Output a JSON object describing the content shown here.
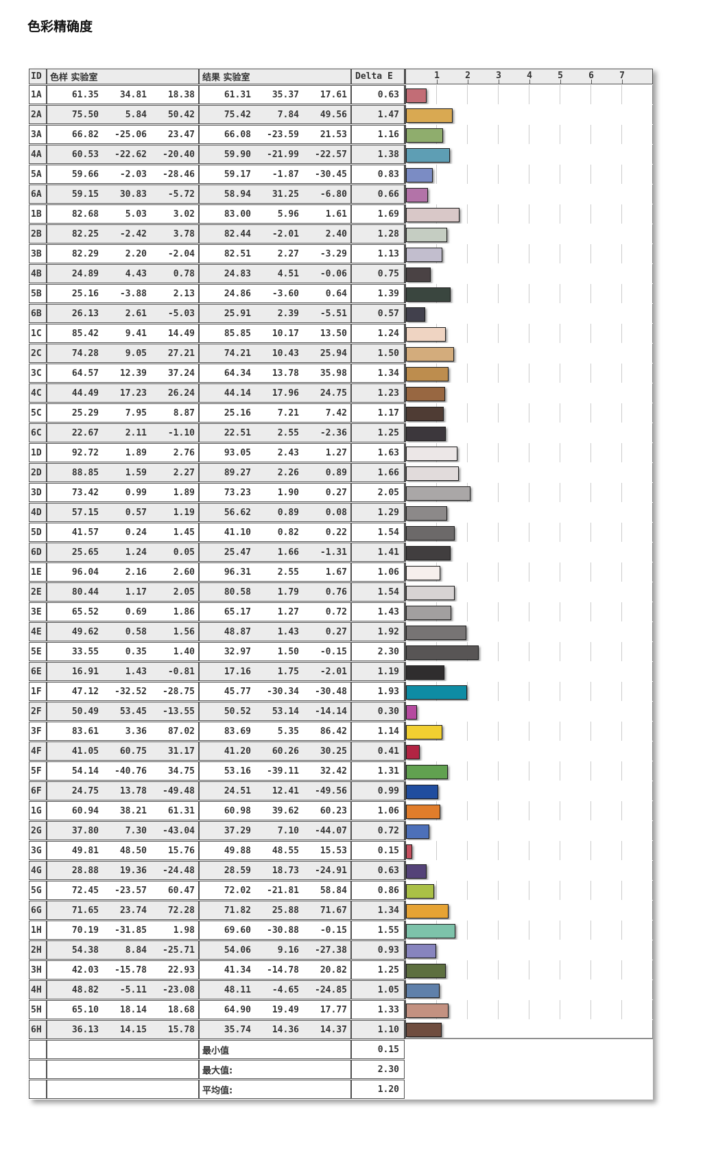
{
  "title": "色彩精确度",
  "table": {
    "headers": {
      "id": "ID",
      "sample": "色样 实验室",
      "result": "结果 实验室",
      "delta": "Delta E"
    },
    "scale_ticks": [
      "1",
      "2",
      "3",
      "4",
      "5",
      "6",
      "7"
    ],
    "rows": [
      {
        "id": "1A",
        "sample": [
          "61.35",
          "34.81",
          "18.38"
        ],
        "result": [
          "61.31",
          "35.37",
          "17.61"
        ],
        "delta": "0.63",
        "color": "#c26d76"
      },
      {
        "id": "2A",
        "sample": [
          "75.50",
          "5.84",
          "50.42"
        ],
        "result": [
          "75.42",
          "7.84",
          "49.56"
        ],
        "delta": "1.47",
        "color": "#d9a952"
      },
      {
        "id": "3A",
        "sample": [
          "66.82",
          "-25.06",
          "23.47"
        ],
        "result": [
          "66.08",
          "-23.59",
          "21.53"
        ],
        "delta": "1.16",
        "color": "#8fad6d"
      },
      {
        "id": "4A",
        "sample": [
          "60.53",
          "-22.62",
          "-20.40"
        ],
        "result": [
          "59.90",
          "-21.99",
          "-22.57"
        ],
        "delta": "1.38",
        "color": "#5e9eb4"
      },
      {
        "id": "5A",
        "sample": [
          "59.66",
          "-2.03",
          "-28.46"
        ],
        "result": [
          "59.17",
          "-1.87",
          "-30.45"
        ],
        "delta": "0.83",
        "color": "#7b8cc4"
      },
      {
        "id": "6A",
        "sample": [
          "59.15",
          "30.83",
          "-5.72"
        ],
        "result": [
          "58.94",
          "31.25",
          "-6.80"
        ],
        "delta": "0.66",
        "color": "#b373a8"
      },
      {
        "id": "1B",
        "sample": [
          "82.68",
          "5.03",
          "3.02"
        ],
        "result": [
          "83.00",
          "5.96",
          "1.61"
        ],
        "delta": "1.69",
        "color": "#d9c8c8"
      },
      {
        "id": "2B",
        "sample": [
          "82.25",
          "-2.42",
          "3.78"
        ],
        "result": [
          "82.44",
          "-2.01",
          "2.40"
        ],
        "delta": "1.28",
        "color": "#c5cdc2"
      },
      {
        "id": "3B",
        "sample": [
          "82.29",
          "2.20",
          "-2.04"
        ],
        "result": [
          "82.51",
          "2.27",
          "-3.29"
        ],
        "delta": "1.13",
        "color": "#c2bece"
      },
      {
        "id": "4B",
        "sample": [
          "24.89",
          "4.43",
          "0.78"
        ],
        "result": [
          "24.83",
          "4.51",
          "-0.06"
        ],
        "delta": "0.75",
        "color": "#4a4244"
      },
      {
        "id": "5B",
        "sample": [
          "25.16",
          "-3.88",
          "2.13"
        ],
        "result": [
          "24.86",
          "-3.60",
          "0.64"
        ],
        "delta": "1.39",
        "color": "#3a463f"
      },
      {
        "id": "6B",
        "sample": [
          "26.13",
          "2.61",
          "-5.03"
        ],
        "result": [
          "25.91",
          "2.39",
          "-5.51"
        ],
        "delta": "0.57",
        "color": "#41404c"
      },
      {
        "id": "1C",
        "sample": [
          "85.42",
          "9.41",
          "14.49"
        ],
        "result": [
          "85.85",
          "10.17",
          "13.50"
        ],
        "delta": "1.24",
        "color": "#efd4c2"
      },
      {
        "id": "2C",
        "sample": [
          "74.28",
          "9.05",
          "27.21"
        ],
        "result": [
          "74.21",
          "10.43",
          "25.94"
        ],
        "delta": "1.50",
        "color": "#d3ac7c"
      },
      {
        "id": "3C",
        "sample": [
          "64.57",
          "12.39",
          "37.24"
        ],
        "result": [
          "64.34",
          "13.78",
          "35.98"
        ],
        "delta": "1.34",
        "color": "#bd8d4e"
      },
      {
        "id": "4C",
        "sample": [
          "44.49",
          "17.23",
          "26.24"
        ],
        "result": [
          "44.14",
          "17.96",
          "24.75"
        ],
        "delta": "1.23",
        "color": "#986741"
      },
      {
        "id": "5C",
        "sample": [
          "25.29",
          "7.95",
          "8.87"
        ],
        "result": [
          "25.16",
          "7.21",
          "7.42"
        ],
        "delta": "1.17",
        "color": "#4f3c34"
      },
      {
        "id": "6C",
        "sample": [
          "22.67",
          "2.11",
          "-1.10"
        ],
        "result": [
          "22.51",
          "2.55",
          "-2.36"
        ],
        "delta": "1.25",
        "color": "#3c373c"
      },
      {
        "id": "1D",
        "sample": [
          "92.72",
          "1.89",
          "2.76"
        ],
        "result": [
          "93.05",
          "2.43",
          "1.27"
        ],
        "delta": "1.63",
        "color": "#ece7e7"
      },
      {
        "id": "2D",
        "sample": [
          "88.85",
          "1.59",
          "2.27"
        ],
        "result": [
          "89.27",
          "2.26",
          "0.89"
        ],
        "delta": "1.66",
        "color": "#e1dbdb"
      },
      {
        "id": "3D",
        "sample": [
          "73.42",
          "0.99",
          "1.89"
        ],
        "result": [
          "73.23",
          "1.90",
          "0.27"
        ],
        "delta": "2.05",
        "color": "#aaa7a7"
      },
      {
        "id": "4D",
        "sample": [
          "57.15",
          "0.57",
          "1.19"
        ],
        "result": [
          "56.62",
          "0.89",
          "0.08"
        ],
        "delta": "1.29",
        "color": "#8c8989"
      },
      {
        "id": "5D",
        "sample": [
          "41.57",
          "0.24",
          "1.45"
        ],
        "result": [
          "41.10",
          "0.82",
          "0.22"
        ],
        "delta": "1.54",
        "color": "#6c6969"
      },
      {
        "id": "6D",
        "sample": [
          "25.65",
          "1.24",
          "0.05"
        ],
        "result": [
          "25.47",
          "1.66",
          "-1.31"
        ],
        "delta": "1.41",
        "color": "#413e3f"
      },
      {
        "id": "1E",
        "sample": [
          "96.04",
          "2.16",
          "2.60"
        ],
        "result": [
          "96.31",
          "2.55",
          "1.67"
        ],
        "delta": "1.06",
        "color": "#f6efed"
      },
      {
        "id": "2E",
        "sample": [
          "80.44",
          "1.17",
          "2.05"
        ],
        "result": [
          "80.58",
          "1.79",
          "0.76"
        ],
        "delta": "1.54",
        "color": "#d7d3d3"
      },
      {
        "id": "3E",
        "sample": [
          "65.52",
          "0.69",
          "1.86"
        ],
        "result": [
          "65.17",
          "1.27",
          "0.72"
        ],
        "delta": "1.43",
        "color": "#a29f9f"
      },
      {
        "id": "4E",
        "sample": [
          "49.62",
          "0.58",
          "1.56"
        ],
        "result": [
          "48.87",
          "1.43",
          "0.27"
        ],
        "delta": "1.92",
        "color": "#777474"
      },
      {
        "id": "5E",
        "sample": [
          "33.55",
          "0.35",
          "1.40"
        ],
        "result": [
          "32.97",
          "1.50",
          "-0.15"
        ],
        "delta": "2.30",
        "color": "#585555"
      },
      {
        "id": "6E",
        "sample": [
          "16.91",
          "1.43",
          "-0.81"
        ],
        "result": [
          "17.16",
          "1.75",
          "-2.01"
        ],
        "delta": "1.19",
        "color": "#2f2d2e"
      },
      {
        "id": "1F",
        "sample": [
          "47.12",
          "-32.52",
          "-28.75"
        ],
        "result": [
          "45.77",
          "-30.34",
          "-30.48"
        ],
        "delta": "1.93",
        "color": "#0e8ca4"
      },
      {
        "id": "2F",
        "sample": [
          "50.49",
          "53.45",
          "-13.55"
        ],
        "result": [
          "50.52",
          "53.14",
          "-14.14"
        ],
        "delta": "0.30",
        "color": "#b5499f"
      },
      {
        "id": "3F",
        "sample": [
          "83.61",
          "3.36",
          "87.02"
        ],
        "result": [
          "83.69",
          "5.35",
          "86.42"
        ],
        "delta": "1.14",
        "color": "#f1cf31"
      },
      {
        "id": "4F",
        "sample": [
          "41.05",
          "60.75",
          "31.17"
        ],
        "result": [
          "41.20",
          "60.26",
          "30.25"
        ],
        "delta": "0.41",
        "color": "#b22443"
      },
      {
        "id": "5F",
        "sample": [
          "54.14",
          "-40.76",
          "34.75"
        ],
        "result": [
          "53.16",
          "-39.11",
          "32.42"
        ],
        "delta": "1.31",
        "color": "#61a150"
      },
      {
        "id": "6F",
        "sample": [
          "24.75",
          "13.78",
          "-49.48"
        ],
        "result": [
          "24.51",
          "12.41",
          "-49.56"
        ],
        "delta": "0.99",
        "color": "#204d9f"
      },
      {
        "id": "1G",
        "sample": [
          "60.94",
          "38.21",
          "61.31"
        ],
        "result": [
          "60.98",
          "39.62",
          "60.23"
        ],
        "delta": "1.06",
        "color": "#e17d2b"
      },
      {
        "id": "2G",
        "sample": [
          "37.80",
          "7.30",
          "-43.04"
        ],
        "result": [
          "37.29",
          "7.10",
          "-44.07"
        ],
        "delta": "0.72",
        "color": "#4d70b9"
      },
      {
        "id": "3G",
        "sample": [
          "49.81",
          "48.50",
          "15.76"
        ],
        "result": [
          "49.88",
          "48.55",
          "15.53"
        ],
        "delta": "0.15",
        "color": "#c5505f"
      },
      {
        "id": "4G",
        "sample": [
          "28.88",
          "19.36",
          "-24.48"
        ],
        "result": [
          "28.59",
          "18.73",
          "-24.91"
        ],
        "delta": "0.63",
        "color": "#544278"
      },
      {
        "id": "5G",
        "sample": [
          "72.45",
          "-23.57",
          "60.47"
        ],
        "result": [
          "72.02",
          "-21.81",
          "58.84"
        ],
        "delta": "0.86",
        "color": "#aac046"
      },
      {
        "id": "6G",
        "sample": [
          "71.65",
          "23.74",
          "72.28"
        ],
        "result": [
          "71.82",
          "25.88",
          "71.67"
        ],
        "delta": "1.34",
        "color": "#e6a334"
      },
      {
        "id": "1H",
        "sample": [
          "70.19",
          "-31.85",
          "1.98"
        ],
        "result": [
          "69.60",
          "-30.88",
          "-0.15"
        ],
        "delta": "1.55",
        "color": "#7dc2aa"
      },
      {
        "id": "2H",
        "sample": [
          "54.38",
          "8.84",
          "-25.71"
        ],
        "result": [
          "54.06",
          "9.16",
          "-27.38"
        ],
        "delta": "0.93",
        "color": "#8784be"
      },
      {
        "id": "3H",
        "sample": [
          "42.03",
          "-15.78",
          "22.93"
        ],
        "result": [
          "41.34",
          "-14.78",
          "20.82"
        ],
        "delta": "1.25",
        "color": "#5d6f3f"
      },
      {
        "id": "4H",
        "sample": [
          "48.82",
          "-5.11",
          "-23.08"
        ],
        "result": [
          "48.11",
          "-4.65",
          "-24.85"
        ],
        "delta": "1.05",
        "color": "#5f80aa"
      },
      {
        "id": "5H",
        "sample": [
          "65.10",
          "18.14",
          "18.68"
        ],
        "result": [
          "64.90",
          "19.49",
          "17.77"
        ],
        "delta": "1.33",
        "color": "#c39181"
      },
      {
        "id": "6H",
        "sample": [
          "36.13",
          "14.15",
          "15.78"
        ],
        "result": [
          "35.74",
          "14.36",
          "14.37"
        ],
        "delta": "1.10",
        "color": "#6f4d3f"
      }
    ],
    "summary": [
      {
        "label": "最小值",
        "value": "0.15"
      },
      {
        "label": "最大值:",
        "value": "2.30"
      },
      {
        "label": "平均值:",
        "value": "1.20"
      }
    ]
  },
  "chart_data": {
    "type": "bar",
    "orientation": "horizontal",
    "title": "色彩精确度",
    "xlabel": "Delta E",
    "xlim": [
      0,
      8
    ],
    "xticks": [
      1,
      2,
      3,
      4,
      5,
      6,
      7
    ],
    "grid": true,
    "categories": [
      "1A",
      "2A",
      "3A",
      "4A",
      "5A",
      "6A",
      "1B",
      "2B",
      "3B",
      "4B",
      "5B",
      "6B",
      "1C",
      "2C",
      "3C",
      "4C",
      "5C",
      "6C",
      "1D",
      "2D",
      "3D",
      "4D",
      "5D",
      "6D",
      "1E",
      "2E",
      "3E",
      "4E",
      "5E",
      "6E",
      "1F",
      "2F",
      "3F",
      "4F",
      "5F",
      "6F",
      "1G",
      "2G",
      "3G",
      "4G",
      "5G",
      "6G",
      "1H",
      "2H",
      "3H",
      "4H",
      "5H",
      "6H"
    ],
    "values": [
      0.63,
      1.47,
      1.16,
      1.38,
      0.83,
      0.66,
      1.69,
      1.28,
      1.13,
      0.75,
      1.39,
      0.57,
      1.24,
      1.5,
      1.34,
      1.23,
      1.17,
      1.25,
      1.63,
      1.66,
      2.05,
      1.29,
      1.54,
      1.41,
      1.06,
      1.54,
      1.43,
      1.92,
      2.3,
      1.19,
      1.93,
      0.3,
      1.14,
      0.41,
      1.31,
      0.99,
      1.06,
      0.72,
      0.15,
      0.63,
      0.86,
      1.34,
      1.55,
      0.93,
      1.25,
      1.05,
      1.33,
      1.1
    ],
    "bar_colors": [
      "#c26d76",
      "#d9a952",
      "#8fad6d",
      "#5e9eb4",
      "#7b8cc4",
      "#b373a8",
      "#d9c8c8",
      "#c5cdc2",
      "#c2bece",
      "#4a4244",
      "#3a463f",
      "#41404c",
      "#efd4c2",
      "#d3ac7c",
      "#bd8d4e",
      "#986741",
      "#4f3c34",
      "#3c373c",
      "#ece7e7",
      "#e1dbdb",
      "#aaa7a7",
      "#8c8989",
      "#6c6969",
      "#413e3f",
      "#f6efed",
      "#d7d3d3",
      "#a29f9f",
      "#777474",
      "#585555",
      "#2f2d2e",
      "#0e8ca4",
      "#b5499f",
      "#f1cf31",
      "#b22443",
      "#61a150",
      "#204d9f",
      "#e17d2b",
      "#4d70b9",
      "#c5505f",
      "#544278",
      "#aac046",
      "#e6a334",
      "#7dc2aa",
      "#8784be",
      "#5d6f3f",
      "#5f80aa",
      "#c39181",
      "#6f4d3f"
    ],
    "summary": {
      "min": 0.15,
      "max": 2.3,
      "mean": 1.2
    }
  }
}
